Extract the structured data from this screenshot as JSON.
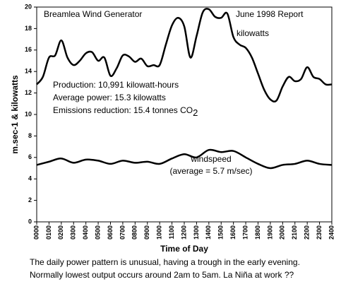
{
  "chart_data": {
    "type": "line",
    "title": "Breamlea Wind Generator",
    "subtitle": "June 1998 Report",
    "x_label": "Time of Day",
    "y_label": "m.sec-1 & kilowatts",
    "annotations": [
      {
        "text": "Production: 10,991 kilowatt-hours"
      },
      {
        "text": "Average power: 15.3 kilowatts"
      },
      {
        "text": "Emissions reduction:  15.4 tonnes CO",
        "subscript": "2"
      }
    ],
    "series": [
      {
        "name": "kilowatts",
        "color": "#000000",
        "x": [
          0,
          0.5,
          1,
          1.5,
          2,
          2.5,
          3,
          3.5,
          4,
          4.5,
          5,
          5.5,
          6,
          6.5,
          7,
          7.5,
          8,
          8.5,
          9,
          9.5,
          10,
          10.5,
          11,
          11.5,
          12,
          12.5,
          13,
          13.5,
          14,
          14.5,
          15,
          15.5,
          16,
          16.5,
          17,
          17.5,
          18,
          18.5,
          19,
          19.5,
          20,
          20.5,
          21,
          21.5,
          22,
          22.5,
          23,
          23.5,
          24
        ],
        "values": [
          12.8,
          13.5,
          15.3,
          15.5,
          16.9,
          15.3,
          14.6,
          15.0,
          15.7,
          15.8,
          15.0,
          15.3,
          13.6,
          14.3,
          15.5,
          15.4,
          14.9,
          15.2,
          14.5,
          14.6,
          14.6,
          16.5,
          18.3,
          19.0,
          18.2,
          15.3,
          17.3,
          19.5,
          19.8,
          19.1,
          19.0,
          19.4,
          17.2,
          16.5,
          16.2,
          15.3,
          13.8,
          12.3,
          11.4,
          11.3,
          12.6,
          13.5,
          13.1,
          13.3,
          14.4,
          13.5,
          13.3,
          12.8,
          12.8
        ]
      },
      {
        "name": "windspeed",
        "note": "(average = 5.7 m/sec)",
        "color": "#000000",
        "x": [
          0,
          1,
          2,
          3,
          4,
          5,
          6,
          7,
          8,
          9,
          10,
          11,
          12,
          13,
          14,
          15,
          16,
          17,
          18,
          19,
          20,
          21,
          22,
          23,
          24
        ],
        "values": [
          5.3,
          5.6,
          5.9,
          5.5,
          5.8,
          5.7,
          5.4,
          5.7,
          5.5,
          5.6,
          5.4,
          5.9,
          6.3,
          6.0,
          6.7,
          6.5,
          6.6,
          6.0,
          5.4,
          5.0,
          5.3,
          5.4,
          5.7,
          5.4,
          5.3
        ]
      }
    ],
    "xlim": [
      0,
      24
    ],
    "xticks": [
      {
        "value": 0,
        "label": "0000"
      },
      {
        "value": 1,
        "label": "0100"
      },
      {
        "value": 2,
        "label": "0200"
      },
      {
        "value": 3,
        "label": "0300"
      },
      {
        "value": 4,
        "label": "0400"
      },
      {
        "value": 5,
        "label": "0500"
      },
      {
        "value": 6,
        "label": "0600"
      },
      {
        "value": 7,
        "label": "0700"
      },
      {
        "value": 8,
        "label": "0800"
      },
      {
        "value": 9,
        "label": "0900"
      },
      {
        "value": 10,
        "label": "1000"
      },
      {
        "value": 11,
        "label": "1100"
      },
      {
        "value": 12,
        "label": "1200"
      },
      {
        "value": 13,
        "label": "1300"
      },
      {
        "value": 14,
        "label": "1400"
      },
      {
        "value": 15,
        "label": "1500"
      },
      {
        "value": 16,
        "label": "1600"
      },
      {
        "value": 17,
        "label": "1700"
      },
      {
        "value": 18,
        "label": "1800"
      },
      {
        "value": 19,
        "label": "1900"
      },
      {
        "value": 20,
        "label": "2000"
      },
      {
        "value": 21,
        "label": "2100"
      },
      {
        "value": 22,
        "label": "2200"
      },
      {
        "value": 23,
        "label": "2300"
      },
      {
        "value": 24,
        "label": "2400"
      }
    ],
    "ylim": [
      0,
      20
    ],
    "yticks": [
      0,
      2,
      4,
      6,
      8,
      10,
      12,
      14,
      16,
      18,
      20
    ],
    "grid": false,
    "caption": [
      "The daily power pattern is unusual, having a trough in the early evening.",
      "Normally lowest output occurs around 2am to 5am. La Niña at work ??"
    ]
  }
}
